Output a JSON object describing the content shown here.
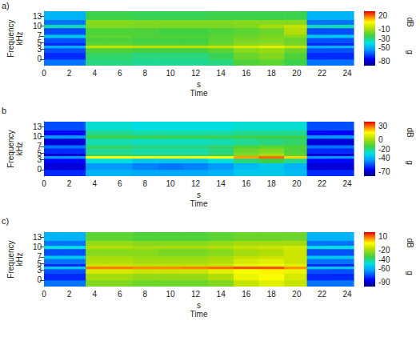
{
  "chart_data": [
    {
      "type": "heatmap",
      "label": "a)",
      "xlabel": [
        "s",
        "Time"
      ],
      "ylabel": [
        "Frequency",
        "kHz"
      ],
      "xlim": [
        0,
        24.5
      ],
      "xticks": [
        0,
        2,
        4,
        6,
        8,
        10,
        12,
        14,
        16,
        18,
        20,
        22,
        24
      ],
      "ylim": [
        -2,
        14.5
      ],
      "yticks": [
        0,
        3,
        5,
        7,
        10,
        13
      ],
      "x_edges": [
        0,
        1.5,
        3.3,
        5,
        7,
        9,
        11,
        13,
        15,
        17,
        19,
        20.8,
        22.5,
        24.5
      ],
      "y_edges": [
        -2,
        0,
        2,
        3.4,
        4.2,
        5,
        6.5,
        7.5,
        9.5,
        10.5,
        12,
        14.5
      ],
      "z": [
        [
          -60,
          -60,
          -30,
          -30,
          -32,
          -32,
          -32,
          -30,
          -22,
          -20,
          -25,
          -60,
          -60
        ],
        [
          -70,
          -70,
          -28,
          -28,
          -30,
          -30,
          -30,
          -26,
          -18,
          -15,
          -22,
          -70,
          -70
        ],
        [
          -65,
          -65,
          -22,
          -22,
          -24,
          -24,
          -24,
          -20,
          -14,
          -12,
          -18,
          -65,
          -65
        ],
        [
          -50,
          -50,
          -5,
          -5,
          -6,
          -6,
          -6,
          -5,
          -2,
          0,
          -4,
          -50,
          -50
        ],
        [
          -70,
          -70,
          -20,
          -20,
          -22,
          -22,
          -22,
          -18,
          -14,
          -12,
          -16,
          -70,
          -70
        ],
        [
          -65,
          -65,
          -22,
          -22,
          -24,
          -24,
          -24,
          -20,
          -16,
          -15,
          -18,
          -65,
          -65
        ],
        [
          -45,
          -45,
          -20,
          -20,
          -22,
          -22,
          -22,
          -20,
          -18,
          -16,
          -14,
          -45,
          -45
        ],
        [
          -65,
          -65,
          -22,
          -22,
          -22,
          -24,
          -24,
          -22,
          -20,
          -18,
          -8,
          -65,
          -65
        ],
        [
          -35,
          -35,
          -15,
          -15,
          -16,
          -16,
          -16,
          -16,
          -15,
          -10,
          -5,
          -35,
          -35
        ],
        [
          -60,
          -60,
          -14,
          -14,
          -15,
          -15,
          -15,
          -15,
          -14,
          -14,
          -14,
          -60,
          -60
        ],
        [
          -50,
          -50,
          -25,
          -25,
          -26,
          -26,
          -26,
          -25,
          -25,
          -25,
          -25,
          -50,
          -50
        ]
      ],
      "colorbar": {
        "range": [
          -90,
          30
        ],
        "ticks": [
          20,
          -10,
          -30,
          -50,
          -80
        ],
        "label": [
          "dB",
          "g"
        ]
      }
    },
    {
      "type": "heatmap",
      "label": "b",
      "xlabel": [
        "s",
        "Time"
      ],
      "ylabel": [
        "Frequency",
        "kHz"
      ],
      "xlim": [
        0,
        24.5
      ],
      "xticks": [
        0,
        2,
        4,
        6,
        8,
        10,
        12,
        14,
        16,
        18,
        20,
        22,
        24
      ],
      "ylim": [
        -2,
        14.5
      ],
      "yticks": [
        0,
        3,
        5,
        7,
        10,
        13
      ],
      "x_edges": [
        0,
        1.5,
        3.3,
        5,
        7,
        9,
        11,
        13,
        15,
        17,
        19,
        20.8,
        22.5,
        24.5
      ],
      "y_edges": [
        -2,
        0,
        2,
        3.4,
        4.2,
        5,
        6.5,
        7.5,
        9.5,
        10.5,
        12,
        14.5
      ],
      "z": [
        [
          -60,
          -60,
          -40,
          -40,
          -42,
          -42,
          -42,
          -40,
          -35,
          -35,
          -38,
          -60,
          -60
        ],
        [
          -70,
          -70,
          -45,
          -45,
          -48,
          -50,
          -48,
          -45,
          -38,
          -35,
          -40,
          -70,
          -70
        ],
        [
          -65,
          -65,
          -30,
          -30,
          -35,
          -35,
          -35,
          -30,
          -20,
          -15,
          -22,
          -65,
          -65
        ],
        [
          -45,
          -45,
          15,
          15,
          14,
          14,
          14,
          16,
          25,
          30,
          20,
          -45,
          -45
        ],
        [
          -70,
          -70,
          -20,
          -20,
          -22,
          -22,
          -22,
          -18,
          -5,
          0,
          -10,
          -70,
          -70
        ],
        [
          -60,
          -60,
          -22,
          -22,
          -24,
          -24,
          -24,
          -20,
          -8,
          -5,
          -12,
          -60,
          -60
        ],
        [
          -50,
          -50,
          -18,
          -18,
          -20,
          -20,
          -20,
          -18,
          -12,
          -10,
          -12,
          -50,
          -50
        ],
        [
          -70,
          -70,
          -25,
          -25,
          -26,
          -26,
          -26,
          -25,
          -22,
          -20,
          -18,
          -70,
          -70
        ],
        [
          -45,
          -45,
          -15,
          -15,
          -16,
          -16,
          -16,
          -16,
          -15,
          -15,
          -15,
          -45,
          -45
        ],
        [
          -65,
          -65,
          -22,
          -22,
          -24,
          -24,
          -24,
          -24,
          -22,
          -22,
          -22,
          -65,
          -65
        ],
        [
          -55,
          -55,
          -28,
          -28,
          -30,
          -30,
          -30,
          -30,
          -28,
          -28,
          -28,
          -55,
          -55
        ]
      ],
      "colorbar": {
        "range": [
          -80,
          40
        ],
        "ticks": [
          30,
          0,
          -20,
          -40,
          -70
        ],
        "label": [
          "dB",
          "g"
        ]
      }
    },
    {
      "type": "heatmap",
      "label": "c)",
      "xlabel": [
        "s",
        "Time"
      ],
      "ylabel": [
        "Frequency",
        "kHz"
      ],
      "xlim": [
        0,
        24.5
      ],
      "xticks": [
        0,
        2,
        4,
        6,
        8,
        10,
        12,
        14,
        16,
        18,
        20,
        22,
        24
      ],
      "ylim": [
        -2,
        14.5
      ],
      "yticks": [
        0,
        3,
        5,
        7,
        10,
        13
      ],
      "x_edges": [
        0,
        1.5,
        3.3,
        5,
        7,
        9,
        11,
        13,
        15,
        17,
        19,
        20.8,
        22.5,
        24.5
      ],
      "y_edges": [
        -2,
        0,
        2,
        3.4,
        4.2,
        5,
        6.5,
        7.5,
        9.5,
        10.5,
        12,
        14.5
      ],
      "z": [
        [
          -70,
          -70,
          -25,
          -25,
          -28,
          -28,
          -28,
          -25,
          -15,
          -10,
          -15,
          -70,
          -70
        ],
        [
          -80,
          -80,
          -20,
          -20,
          -22,
          -22,
          -22,
          -18,
          -8,
          -5,
          -12,
          -80,
          -80
        ],
        [
          -75,
          -75,
          -12,
          -12,
          -14,
          -14,
          -14,
          -10,
          -5,
          -3,
          -8,
          -75,
          -75
        ],
        [
          -55,
          -55,
          8,
          8,
          7,
          7,
          8,
          10,
          12,
          12,
          6,
          -55,
          -55
        ],
        [
          -80,
          -80,
          -14,
          -14,
          -16,
          -16,
          -16,
          -14,
          -8,
          -6,
          -10,
          -80,
          -80
        ],
        [
          -70,
          -70,
          -18,
          -18,
          -20,
          -20,
          -20,
          -18,
          -12,
          -10,
          -14,
          -70,
          -70
        ],
        [
          -55,
          -55,
          -20,
          -20,
          -22,
          -22,
          -22,
          -20,
          -16,
          -14,
          -14,
          -55,
          -55
        ],
        [
          -75,
          -75,
          -24,
          -24,
          -24,
          -26,
          -26,
          -24,
          -20,
          -18,
          -14,
          -75,
          -75
        ],
        [
          -50,
          -50,
          -18,
          -18,
          -20,
          -20,
          -20,
          -18,
          -15,
          -14,
          -12,
          -50,
          -50
        ],
        [
          -70,
          -70,
          -22,
          -22,
          -24,
          -24,
          -24,
          -22,
          -20,
          -20,
          -20,
          -70,
          -70
        ],
        [
          -60,
          -60,
          -30,
          -30,
          -32,
          -32,
          -32,
          -30,
          -28,
          -28,
          -28,
          -60,
          -60
        ]
      ],
      "colorbar": {
        "range": [
          -100,
          20
        ],
        "ticks": [
          10,
          -20,
          -40,
          -60,
          -90
        ],
        "label": [
          "dB",
          "g"
        ]
      }
    }
  ]
}
